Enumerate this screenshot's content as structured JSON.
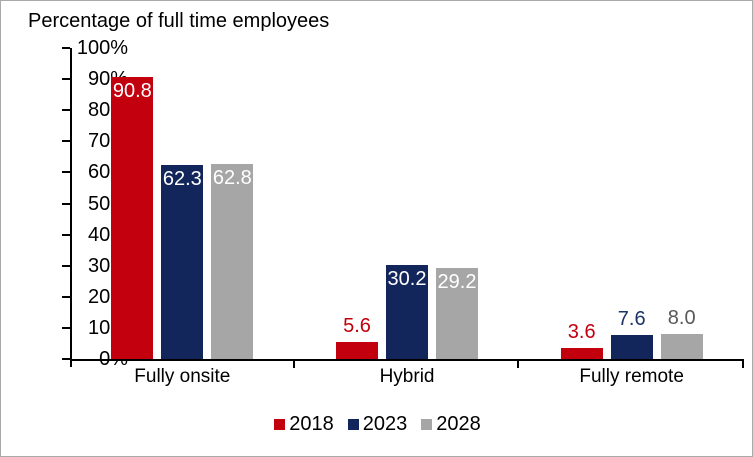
{
  "title": "Percentage of full time employees",
  "colors": {
    "frame_border": "#a9a9a9",
    "axis": "#000000",
    "text": "#000000",
    "inside_label": "#ffffff"
  },
  "chart_data": {
    "type": "bar",
    "title": "Percentage of full time employees",
    "categories": [
      "Fully onsite",
      "Hybrid",
      "Fully remote"
    ],
    "series": [
      {
        "name": "2018",
        "color": "#c2000e",
        "outside_label_color": "#c2000e",
        "values": [
          90.8,
          5.6,
          3.6
        ]
      },
      {
        "name": "2023",
        "color": "#12265c",
        "outside_label_color": "#1c3564",
        "values": [
          62.3,
          30.2,
          7.6
        ]
      },
      {
        "name": "2028",
        "color": "#a6a6a6",
        "outside_label_color": "#595959",
        "values": [
          62.8,
          29.2,
          8.0
        ]
      }
    ],
    "ylabel": "",
    "ylim": [
      0,
      100
    ],
    "y_tick_labels": [
      "0%",
      "10%",
      "20%",
      "30%",
      "40%",
      "50%",
      "60%",
      "70%",
      "80%",
      "90%",
      "100%"
    ],
    "grid": false,
    "legend_position": "bottom",
    "data_labels": "one_decimal",
    "data_label_inside_threshold": 15
  }
}
